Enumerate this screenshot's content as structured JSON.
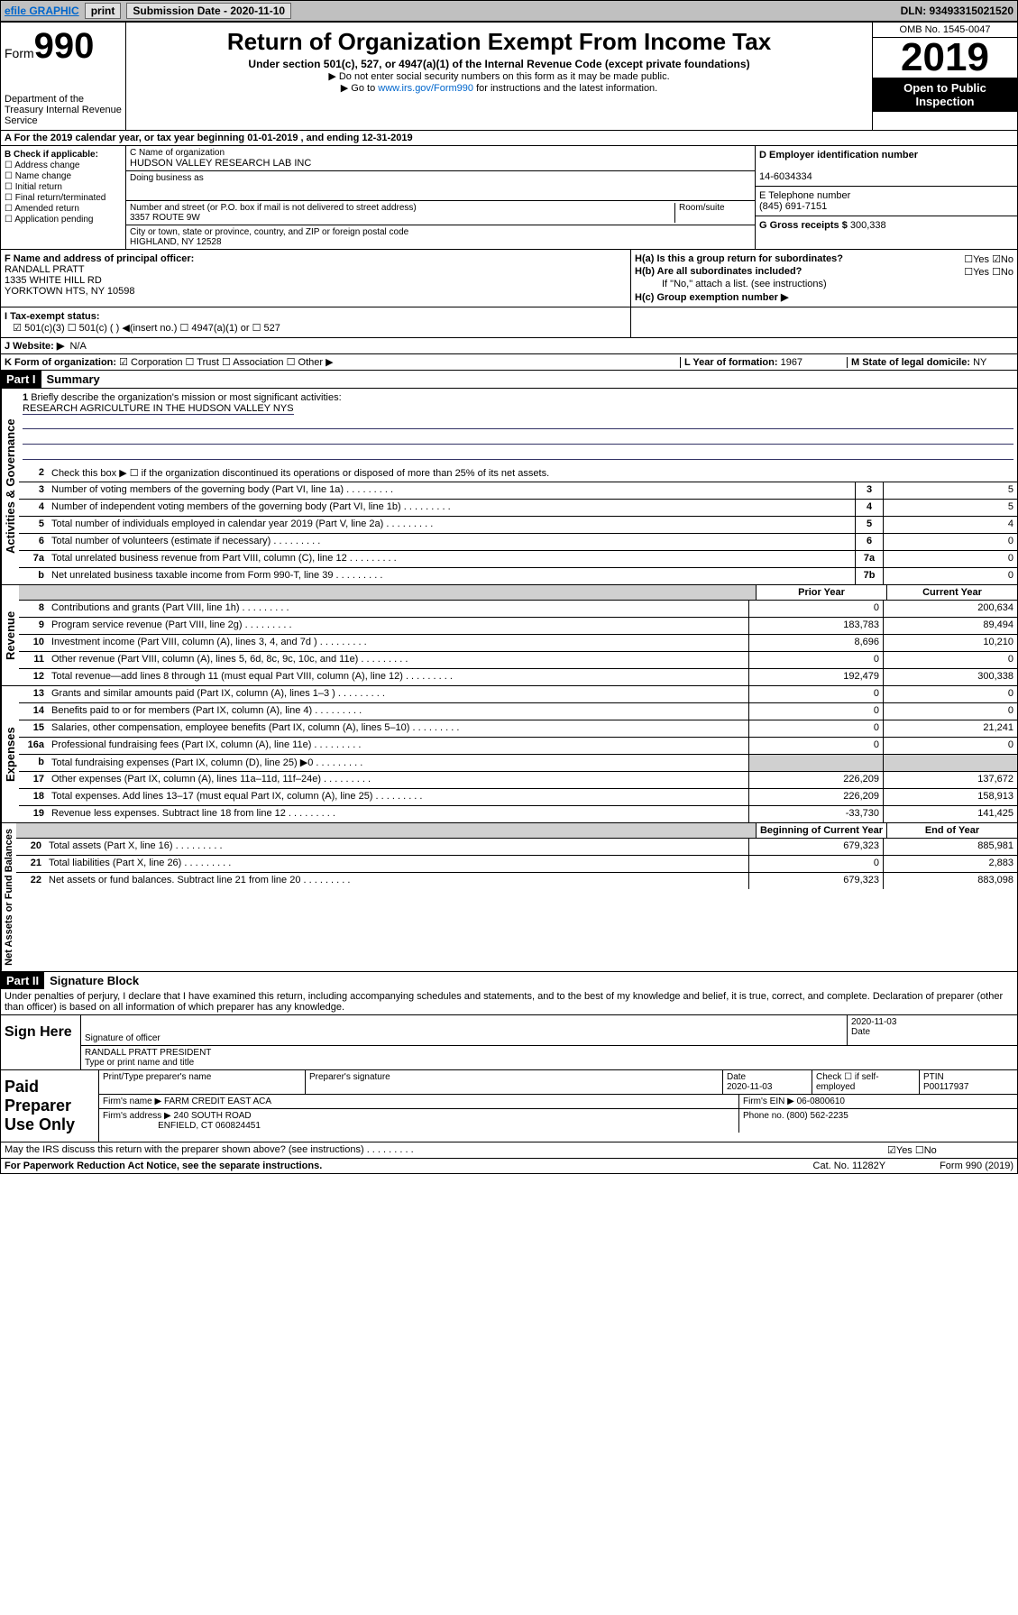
{
  "toolbar": {
    "efile": "efile GRAPHIC",
    "print": "print",
    "subdate_lbl": "Submission Date - 2020-11-10",
    "dln": "DLN: 93493315021520"
  },
  "header": {
    "form": "Form",
    "num": "990",
    "dept": "Department of the Treasury\nInternal Revenue Service",
    "title": "Return of Organization Exempt From Income Tax",
    "sub": "Under section 501(c), 527, or 4947(a)(1) of the Internal Revenue Code (except private foundations)",
    "note1": "▶ Do not enter social security numbers on this form as it may be made public.",
    "note2_pre": "▶ Go to ",
    "note2_link": "www.irs.gov/Form990",
    "note2_post": " for instructions and the latest information.",
    "omb": "OMB No. 1545-0047",
    "year": "2019",
    "inspect": "Open to Public Inspection"
  },
  "A": {
    "text": "A  For the 2019 calendar year, or tax year beginning 01-01-2019   , and ending 12-31-2019"
  },
  "B": {
    "hdr": "B Check if applicable:",
    "opts": [
      "☐ Address change",
      "☐ Name change",
      "☐ Initial return",
      "☐ Final return/terminated",
      "☐ Amended return",
      "☐ Application pending"
    ]
  },
  "C": {
    "name_lbl": "C Name of organization",
    "name": "HUDSON VALLEY RESEARCH LAB INC",
    "dba_lbl": "Doing business as",
    "addr_lbl": "Number and street (or P.O. box if mail is not delivered to street address)",
    "room": "Room/suite",
    "addr": "3357 ROUTE 9W",
    "city_lbl": "City or town, state or province, country, and ZIP or foreign postal code",
    "city": "HIGHLAND, NY  12528"
  },
  "D": {
    "lbl": "D Employer identification number",
    "val": "14-6034334"
  },
  "E": {
    "lbl": "E Telephone number",
    "val": "(845) 691-7151"
  },
  "G": {
    "lbl": "G Gross receipts $",
    "val": "300,338"
  },
  "F": {
    "lbl": "F  Name and address of principal officer:",
    "name": "RANDALL PRATT",
    "addr1": "1335 WHITE HILL RD",
    "addr2": "YORKTOWN HTS, NY  10598"
  },
  "H": {
    "a": "H(a)  Is this a group return for subordinates?",
    "a_yn": "☐Yes ☑No",
    "b": "H(b)  Are all subordinates included?",
    "b_yn": "☐Yes ☐No",
    "b_note": "If \"No,\" attach a list. (see instructions)",
    "c": "H(c)  Group exemption number ▶"
  },
  "I": {
    "lbl": "I     Tax-exempt status:",
    "opts": "☑ 501(c)(3)   ☐ 501(c) (  ) ◀(insert no.)    ☐ 4947(a)(1) or   ☐ 527"
  },
  "J": {
    "lbl": "J    Website: ▶",
    "val": "N/A"
  },
  "K": {
    "lbl": "K Form of organization:",
    "opts": "☑ Corporation ☐ Trust ☐ Association ☐ Other ▶"
  },
  "L": {
    "lbl": "L Year of formation:",
    "val": "1967"
  },
  "M": {
    "lbl": "M State of legal domicile:",
    "val": "NY"
  },
  "part1": {
    "hdr": "Part I",
    "title": "Summary"
  },
  "lines": {
    "1": {
      "n": "1",
      "d": "Briefly describe the organization's mission or most significant activities:",
      "val": "RESEARCH AGRICULTURE IN THE HUDSON VALLEY NYS"
    },
    "2": {
      "n": "2",
      "d": "Check this box ▶ ☐ if the organization discontinued its operations or disposed of more than 25% of its net assets."
    },
    "3": {
      "n": "3",
      "d": "Number of voting members of the governing body (Part VI, line 1a)",
      "box": "3",
      "v": "5"
    },
    "4": {
      "n": "4",
      "d": "Number of independent voting members of the governing body (Part VI, line 1b)",
      "box": "4",
      "v": "5"
    },
    "5": {
      "n": "5",
      "d": "Total number of individuals employed in calendar year 2019 (Part V, line 2a)",
      "box": "5",
      "v": "4"
    },
    "6": {
      "n": "6",
      "d": "Total number of volunteers (estimate if necessary)",
      "box": "6",
      "v": "0"
    },
    "7a": {
      "n": "7a",
      "d": "Total unrelated business revenue from Part VIII, column (C), line 12",
      "box": "7a",
      "v": "0"
    },
    "7b": {
      "n": "b",
      "d": "Net unrelated business taxable income from Form 990-T, line 39",
      "box": "7b",
      "v": "0"
    }
  },
  "colhdr": {
    "prior": "Prior Year",
    "curr": "Current Year",
    "beg": "Beginning of Current Year",
    "end": "End of Year"
  },
  "rev": [
    {
      "n": "8",
      "d": "Contributions and grants (Part VIII, line 1h)",
      "p": "0",
      "c": "200,634"
    },
    {
      "n": "9",
      "d": "Program service revenue (Part VIII, line 2g)",
      "p": "183,783",
      "c": "89,494"
    },
    {
      "n": "10",
      "d": "Investment income (Part VIII, column (A), lines 3, 4, and 7d )",
      "p": "8,696",
      "c": "10,210"
    },
    {
      "n": "11",
      "d": "Other revenue (Part VIII, column (A), lines 5, 6d, 8c, 9c, 10c, and 11e)",
      "p": "0",
      "c": "0"
    },
    {
      "n": "12",
      "d": "Total revenue—add lines 8 through 11 (must equal Part VIII, column (A), line 12)",
      "p": "192,479",
      "c": "300,338"
    }
  ],
  "exp": [
    {
      "n": "13",
      "d": "Grants and similar amounts paid (Part IX, column (A), lines 1–3 )",
      "p": "0",
      "c": "0"
    },
    {
      "n": "14",
      "d": "Benefits paid to or for members (Part IX, column (A), line 4)",
      "p": "0",
      "c": "0"
    },
    {
      "n": "15",
      "d": "Salaries, other compensation, employee benefits (Part IX, column (A), lines 5–10)",
      "p": "0",
      "c": "21,241"
    },
    {
      "n": "16a",
      "d": "Professional fundraising fees (Part IX, column (A), line 11e)",
      "p": "0",
      "c": "0"
    },
    {
      "n": "b",
      "d": "Total fundraising expenses (Part IX, column (D), line 25) ▶0",
      "p": "",
      "c": "",
      "shade": true
    },
    {
      "n": "17",
      "d": "Other expenses (Part IX, column (A), lines 11a–11d, 11f–24e)",
      "p": "226,209",
      "c": "137,672"
    },
    {
      "n": "18",
      "d": "Total expenses. Add lines 13–17 (must equal Part IX, column (A), line 25)",
      "p": "226,209",
      "c": "158,913"
    },
    {
      "n": "19",
      "d": "Revenue less expenses. Subtract line 18 from line 12",
      "p": "-33,730",
      "c": "141,425"
    }
  ],
  "net": [
    {
      "n": "20",
      "d": "Total assets (Part X, line 16)",
      "p": "679,323",
      "c": "885,981"
    },
    {
      "n": "21",
      "d": "Total liabilities (Part X, line 26)",
      "p": "0",
      "c": "2,883"
    },
    {
      "n": "22",
      "d": "Net assets or fund balances. Subtract line 21 from line 20",
      "p": "679,323",
      "c": "883,098"
    }
  ],
  "part2": {
    "hdr": "Part II",
    "title": "Signature Block"
  },
  "penalty": "Under penalties of perjury, I declare that I have examined this return, including accompanying schedules and statements, and to the best of my knowledge and belief, it is true, correct, and complete. Declaration of preparer (other than officer) is based on all information of which preparer has any knowledge.",
  "sign": {
    "lbl": "Sign Here",
    "sig_lbl": "Signature of officer",
    "date": "2020-11-03",
    "date_lbl": "Date",
    "name": "RANDALL PRATT  PRESIDENT",
    "name_lbl": "Type or print name and title"
  },
  "prep": {
    "lbl": "Paid Preparer Use Only",
    "h1": "Print/Type preparer's name",
    "h2": "Preparer's signature",
    "h3": "Date",
    "h3v": "2020-11-03",
    "h4": "Check ☐ if self-employed",
    "h5": "PTIN",
    "h5v": "P00117937",
    "firm_lbl": "Firm's name    ▶",
    "firm": "FARM CREDIT EAST ACA",
    "ein_lbl": "Firm's EIN ▶",
    "ein": "06-0800610",
    "addr_lbl": "Firm's address ▶",
    "addr": "240 SOUTH ROAD",
    "addr2": "ENFIELD, CT  060824451",
    "phone_lbl": "Phone no.",
    "phone": "(800) 562-2235"
  },
  "discuss": {
    "q": "May the IRS discuss this return with the preparer shown above? (see instructions)",
    "yn": "☑Yes  ☐No"
  },
  "footer": {
    "pra": "For Paperwork Reduction Act Notice, see the separate instructions.",
    "cat": "Cat. No. 11282Y",
    "form": "Form 990 (2019)"
  }
}
